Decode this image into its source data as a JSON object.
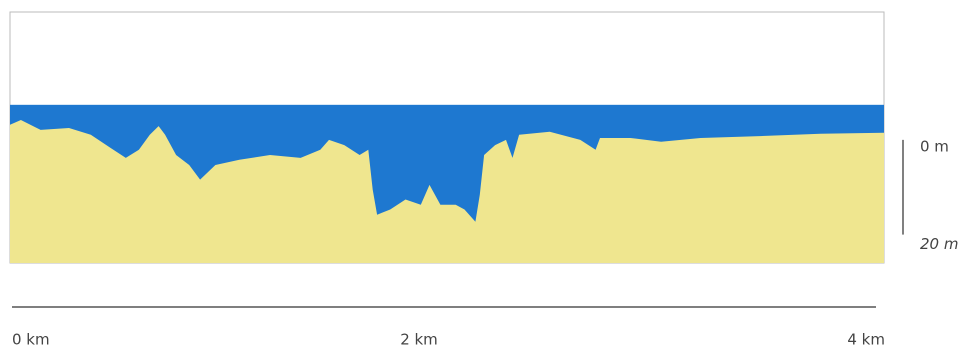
{
  "chart_data": {
    "type": "area",
    "x": [
      0,
      0.05,
      0.14,
      0.27,
      0.37,
      0.46,
      0.53,
      0.59,
      0.64,
      0.68,
      0.71,
      0.76,
      0.82,
      0.87,
      0.94,
      1.05,
      1.19,
      1.33,
      1.42,
      1.46,
      1.53,
      1.6,
      1.64,
      1.66,
      1.68,
      1.74,
      1.81,
      1.88,
      1.92,
      1.97,
      2.04,
      2.08,
      2.13,
      2.15,
      2.17,
      2.22,
      2.27,
      2.3,
      2.33,
      2.47,
      2.61,
      2.68,
      2.7,
      2.84,
      2.98,
      3.16,
      3.43,
      3.71,
      4.0
    ],
    "values": [
      -3.2,
      -4.2,
      -2.1,
      -2.5,
      -1.1,
      1.7,
      3.8,
      2.1,
      -1.1,
      -2.9,
      -1.1,
      3.2,
      5.3,
      8.4,
      5.3,
      4.2,
      3.2,
      3.8,
      2.1,
      0,
      1.1,
      3.2,
      2.1,
      10.5,
      15.8,
      14.7,
      12.6,
      13.7,
      9.5,
      13.7,
      13.7,
      14.7,
      17.3,
      11.6,
      3.2,
      1.1,
      0,
      3.8,
      -1.1,
      -1.7,
      0,
      2.1,
      -0.4,
      -0.4,
      0.4,
      -0.4,
      -0.8,
      -1.3,
      -1.5
    ],
    "color": "#efe68f",
    "surface": -7.4,
    "water_color": "#1e78d0",
    "xlim": [
      0,
      4
    ],
    "xticks": [
      {
        "value": 0,
        "label": "0 km"
      },
      {
        "value": 2,
        "label": "2 km"
      },
      {
        "value": 4,
        "label": "4 km"
      }
    ],
    "ylim": [
      -27,
      26
    ],
    "y_inverted": true,
    "yticks": [
      {
        "value": 0,
        "label": "0 m"
      },
      {
        "value": 20,
        "label": "20 m"
      }
    ]
  }
}
